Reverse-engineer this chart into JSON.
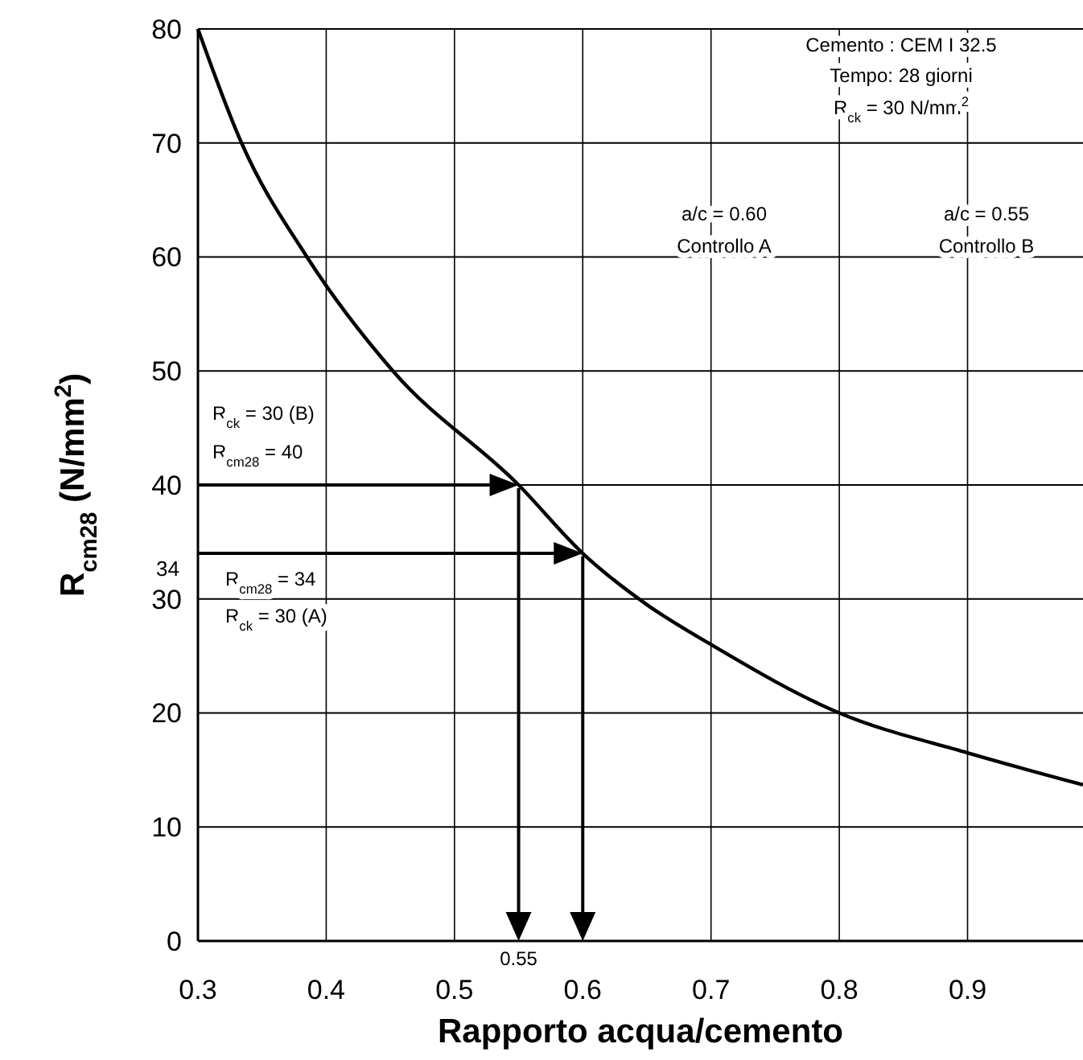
{
  "chart_data": {
    "type": "line",
    "xlabel": "Rapporto acqua/cemento",
    "ylabel": "R$_{cm28}$ (N/mm$^{2}$)",
    "x": [
      0.3,
      0.334,
      0.385,
      0.452,
      0.55,
      0.6,
      0.65,
      0.7,
      0.8,
      0.9,
      0.99
    ],
    "series": [
      {
        "color": "#000000",
        "values": [
          80,
          70,
          60,
          50,
          40,
          34,
          29.5,
          26,
          20,
          16.5,
          13.7
        ]
      }
    ],
    "xlim": [
      0.3,
      0.99
    ],
    "xticks": [
      0.3,
      0.4,
      0.5,
      0.6,
      0.7,
      0.8,
      0.9
    ],
    "ylim": [
      0,
      80
    ],
    "yticks": [
      0,
      10,
      20,
      30,
      40,
      50,
      60,
      70,
      80
    ],
    "grid": true,
    "annotations": [
      "Cemento : CEM I 32.5",
      "Tempo: 28 giorni",
      "R$_{ck}$ = 30 N/mm$^{2}$",
      "a/c = 0.60",
      "Controllo A",
      "a/c = 0.55",
      "Controllo B",
      "R$_{ck}$ = 30 (B)",
      "R$_{cm28}$ = 40",
      "R$_{cm28}$ = 34",
      "R$_{ck}$ = 30 (A)"
    ],
    "ref_lines": [
      {
        "axis": "y",
        "value": 40
      },
      {
        "axis": "y",
        "value": 34,
        "label": "34"
      },
      {
        "axis": "x",
        "value": 0.55,
        "label": "0.55"
      },
      {
        "axis": "x",
        "value": 0.6
      }
    ]
  }
}
